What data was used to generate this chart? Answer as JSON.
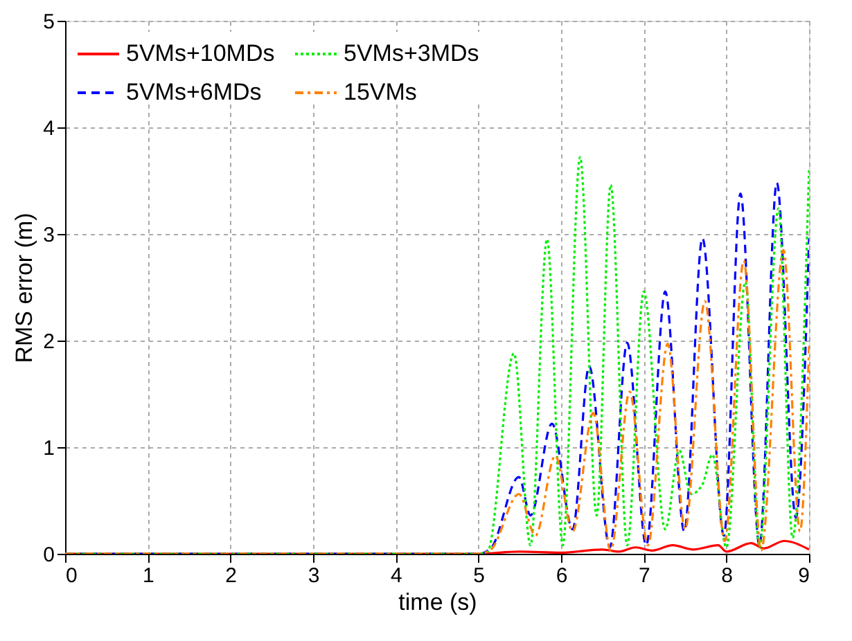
{
  "chart_data": {
    "type": "line",
    "xlabel": "time (s)",
    "ylabel": "RMS error (m)",
    "xlim": [
      0,
      9
    ],
    "ylim": [
      0,
      5
    ],
    "xticks": [
      0,
      1,
      2,
      3,
      4,
      5,
      6,
      7,
      8,
      9
    ],
    "yticks": [
      0,
      1,
      2,
      3,
      4,
      5
    ],
    "grid": true,
    "legend": "top left",
    "marker": "none",
    "series": [
      {
        "name": "5VMs+10MDs",
        "color": "#ff0000",
        "line_style": "solid",
        "x": [
          0,
          5,
          5.5,
          6.0,
          6.5,
          6.7,
          6.9,
          7.1,
          7.35,
          7.6,
          7.9,
          8.0,
          8.3,
          8.45,
          8.7,
          9.0
        ],
        "values": [
          0,
          0,
          0.02,
          0.01,
          0.04,
          0.02,
          0.06,
          0.03,
          0.08,
          0.04,
          0.08,
          0.02,
          0.1,
          0.05,
          0.12,
          0.04
        ]
      },
      {
        "name": "5VMs+6MDs",
        "color": "#0000ff",
        "line_style": "dashed",
        "x": [
          0,
          5,
          5.15,
          5.49,
          5.63,
          5.89,
          6.14,
          6.34,
          6.59,
          6.8,
          7.03,
          7.26,
          7.49,
          7.71,
          7.97,
          8.17,
          8.4,
          8.61,
          8.84,
          9.0
        ],
        "values": [
          0,
          0,
          0.05,
          0.72,
          0.36,
          1.22,
          0.23,
          1.76,
          0.06,
          1.98,
          0.08,
          2.46,
          0.21,
          2.96,
          0.17,
          3.38,
          0.08,
          3.48,
          0.34,
          2.96
        ]
      },
      {
        "name": "5VMs+3MDs",
        "color": "#00ee00",
        "line_style": "dotted",
        "x": [
          0,
          5,
          5.11,
          5.43,
          5.63,
          5.83,
          6.02,
          6.23,
          6.43,
          6.6,
          6.8,
          7.0,
          7.26,
          7.43,
          7.57,
          7.71,
          7.83,
          8.0,
          8.23,
          8.4,
          8.63,
          8.8,
          9.0
        ],
        "values": [
          0,
          0,
          0.02,
          1.88,
          0.08,
          2.95,
          0.08,
          3.72,
          0.36,
          3.46,
          0.08,
          2.46,
          0.23,
          0.97,
          0.56,
          0.65,
          0.93,
          0.06,
          2.55,
          0.06,
          3.24,
          0.15,
          3.62
        ]
      },
      {
        "name": "15VMs",
        "color": "#ff8000",
        "line_style": "dashdot",
        "x": [
          0,
          5,
          5.15,
          5.49,
          5.69,
          5.93,
          6.14,
          6.39,
          6.6,
          6.83,
          7.05,
          7.29,
          7.5,
          7.74,
          7.98,
          8.21,
          8.42,
          8.69,
          8.89,
          9.0
        ],
        "values": [
          0,
          0,
          0.04,
          0.56,
          0.17,
          0.92,
          0.21,
          1.32,
          0.03,
          1.52,
          0.08,
          1.97,
          0.23,
          2.37,
          0.12,
          2.75,
          0.03,
          2.85,
          0.21,
          1.95
        ]
      }
    ]
  }
}
